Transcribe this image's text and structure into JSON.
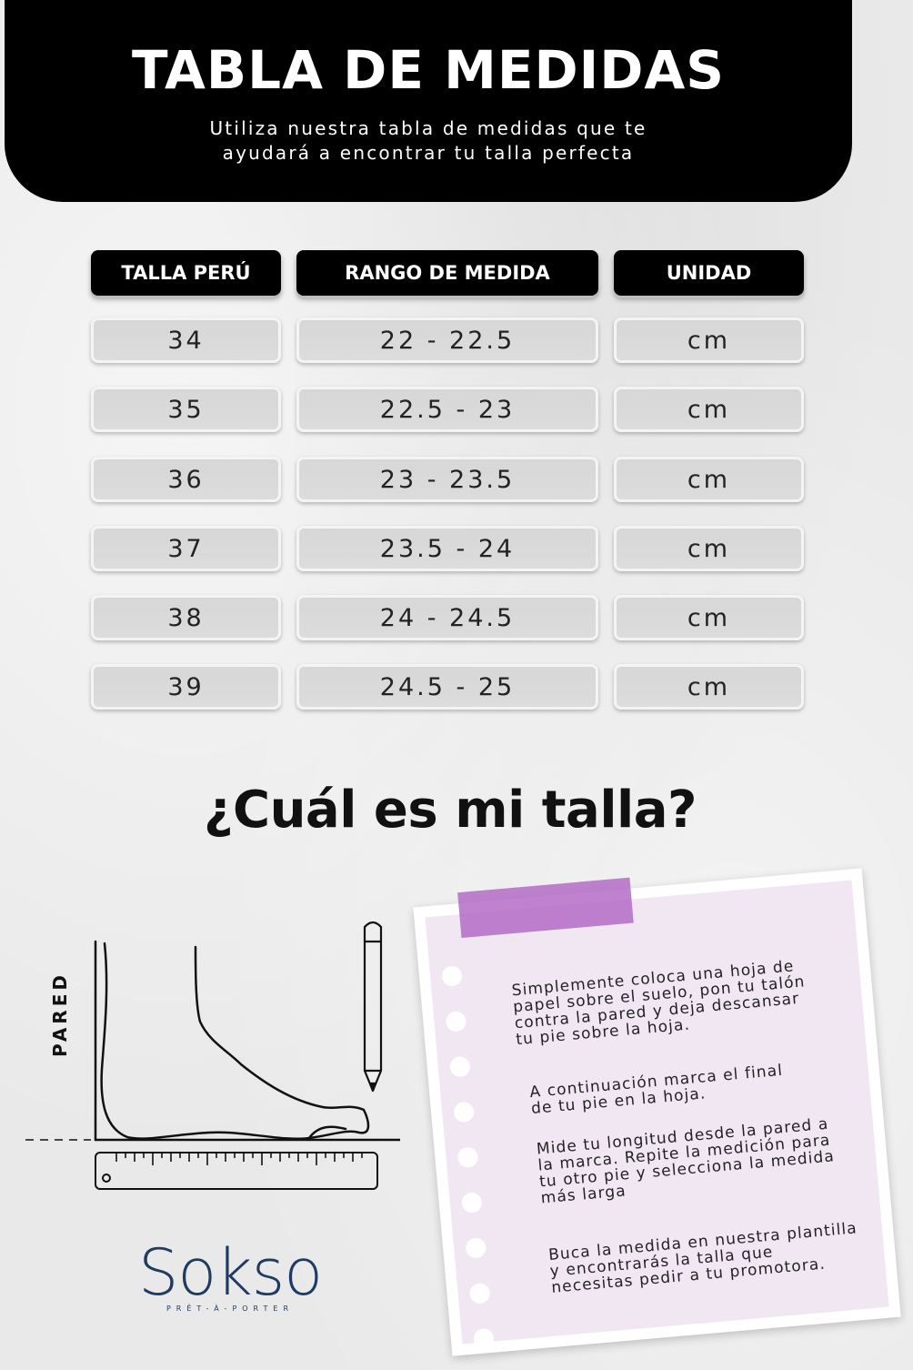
{
  "header": {
    "title": "TABLA DE MEDIDAS",
    "subtitle_line1": "Utiliza nuestra tabla de medidas que te",
    "subtitle_line2": "ayudará a encontrar tu talla perfecta"
  },
  "table": {
    "columns": [
      "TALLA PERÚ",
      "RANGO DE MEDIDA",
      "UNIDAD"
    ],
    "rows": [
      [
        "34",
        "22 - 22.5",
        "cm"
      ],
      [
        "35",
        "22.5 - 23",
        "cm"
      ],
      [
        "36",
        "23 - 23.5",
        "cm"
      ],
      [
        "37",
        "23.5 - 24",
        "cm"
      ],
      [
        "38",
        "24 - 24.5",
        "cm"
      ],
      [
        "39",
        "24.5 - 25",
        "cm"
      ]
    ]
  },
  "question": "¿Cuál es mi talla?",
  "illustration": {
    "wall_label": "PARED",
    "icons": [
      "foot-icon",
      "pencil-icon",
      "ruler-icon"
    ]
  },
  "instructions": {
    "p1": [
      "Simplemente coloca una hoja de",
      "papel sobre el suelo, pon tu talón",
      "contra la pared y deja descansar",
      "tu pie sobre la hoja."
    ],
    "p2": [
      "A continuación marca el final",
      "de tu pie en la hoja."
    ],
    "p3": [
      "Mide tu longitud desde la pared a",
      "la marca. Repite la medición para",
      "tu otro pie y selecciona la medida",
      "más larga"
    ],
    "p4": [
      "Buca la medida en nuestra plantilla",
      "y encontrarás la talla que",
      "necesitas pedir a tu promotora."
    ]
  },
  "brand": {
    "name": "Sokso",
    "tagline": "PRÊT-À-PORTER",
    "color": "#1f3b63"
  },
  "colors": {
    "header_bg": "#000000",
    "cell_bg": "#d9d9d9",
    "note_bg": "#f1e7f3",
    "tape": "#b066c4"
  }
}
